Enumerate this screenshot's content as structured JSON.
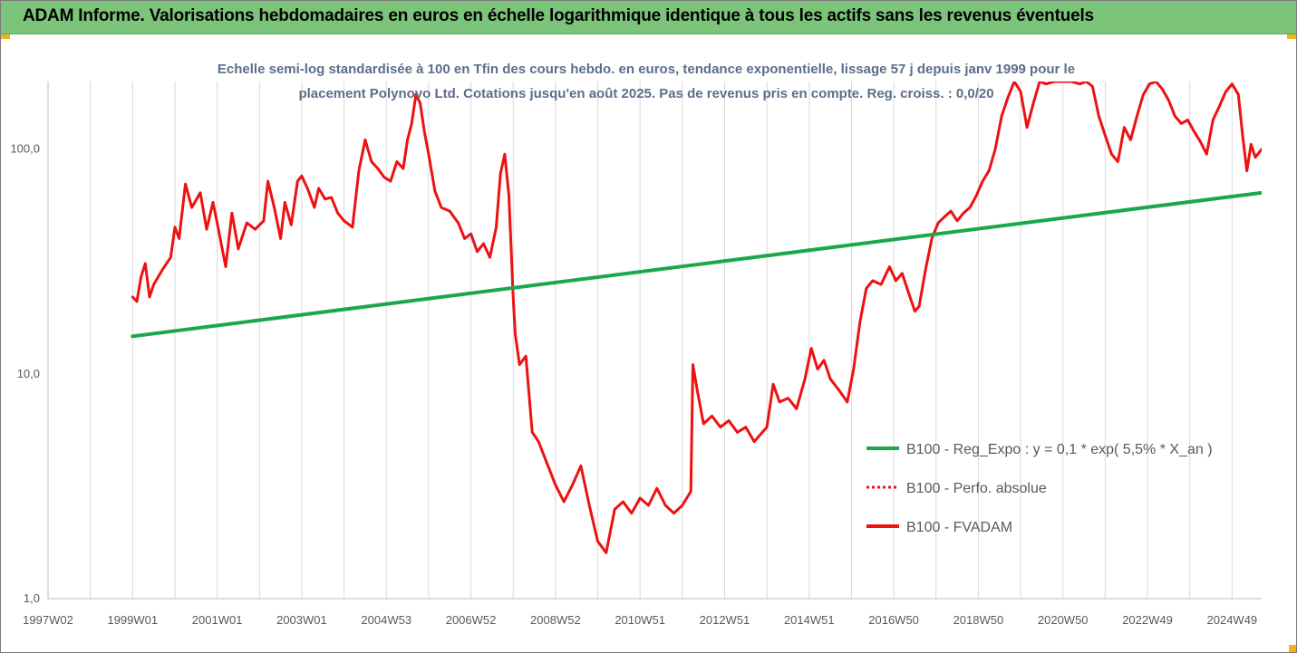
{
  "header": {
    "title": "ADAM Informe. Valorisations hebdomadaires en euros en échelle logarithmique identique à tous les actifs sans les revenus éventuels"
  },
  "colors": {
    "banner": "#7cc47a",
    "accent": "#f2b21a",
    "regression": "#1aa84a",
    "fvadam": "#ee1111",
    "perfo": "#ee1111",
    "subtitle": "#5b6e8a",
    "axis_text": "#595959"
  },
  "chart_data": {
    "type": "line",
    "subtitle_lines": [
      "Echelle semi-log standardisée à 100 en Tfin des cours hebdo. en euros, tendance exponentielle, lissage 57 j depuis janv 1999 pour le",
      "placement Polynovo Ltd. Cotations jusqu'en août 2025. Pas de revenus pris en compte. Reg. croiss. : 0,0/20"
    ],
    "y_scale": "log",
    "ylim": [
      1,
      200
    ],
    "y_ticks": [
      {
        "value": 1,
        "label": "1,0"
      },
      {
        "value": 10,
        "label": "10,0"
      },
      {
        "value": 100,
        "label": "100,0"
      }
    ],
    "x_unit": "year",
    "xlim": [
      1997.0,
      2025.7
    ],
    "x_ticks": [
      {
        "value": 1997.0,
        "label": "1997W02"
      },
      {
        "value": 1999.0,
        "label": "1999W01"
      },
      {
        "value": 2001.0,
        "label": "2001W01"
      },
      {
        "value": 2003.0,
        "label": "2003W01"
      },
      {
        "value": 2005.0,
        "label": "2004W53"
      },
      {
        "value": 2007.0,
        "label": "2006W52"
      },
      {
        "value": 2009.0,
        "label": "2008W52"
      },
      {
        "value": 2011.0,
        "label": "2010W51"
      },
      {
        "value": 2013.0,
        "label": "2012W51"
      },
      {
        "value": 2015.0,
        "label": "2014W51"
      },
      {
        "value": 2017.0,
        "label": "2016W50"
      },
      {
        "value": 2019.0,
        "label": "2018W50"
      },
      {
        "value": 2021.0,
        "label": "2020W50"
      },
      {
        "value": 2023.0,
        "label": "2022W49"
      },
      {
        "value": 2025.0,
        "label": "2024W49"
      }
    ],
    "grid": "vertical",
    "legend_position": "bottom-right",
    "series": [
      {
        "name": "B100 - Reg_Expo : y = 0,1 * exp( 5,5% *  X_an )",
        "style": "solid",
        "color": "#1aa84a",
        "points": [
          [
            1999.0,
            14.7
          ],
          [
            2025.7,
            64.0
          ]
        ]
      },
      {
        "name": "B100 - Perfo. absolue",
        "style": "dotted",
        "color": "#ee1111",
        "points": []
      },
      {
        "name": "B100 - FVADAM",
        "style": "solid",
        "color": "#ee1111",
        "points": [
          [
            1999.0,
            22
          ],
          [
            1999.1,
            21
          ],
          [
            1999.2,
            27
          ],
          [
            1999.3,
            31
          ],
          [
            1999.4,
            22
          ],
          [
            1999.5,
            25
          ],
          [
            1999.7,
            29
          ],
          [
            1999.9,
            33
          ],
          [
            2000.0,
            45
          ],
          [
            2000.1,
            40
          ],
          [
            2000.25,
            70
          ],
          [
            2000.4,
            55
          ],
          [
            2000.6,
            64
          ],
          [
            2000.75,
            44
          ],
          [
            2000.9,
            58
          ],
          [
            2001.0,
            47
          ],
          [
            2001.2,
            30
          ],
          [
            2001.35,
            52
          ],
          [
            2001.5,
            36
          ],
          [
            2001.7,
            47
          ],
          [
            2001.9,
            44
          ],
          [
            2002.1,
            48
          ],
          [
            2002.2,
            72
          ],
          [
            2002.35,
            55
          ],
          [
            2002.5,
            40
          ],
          [
            2002.6,
            58
          ],
          [
            2002.75,
            46
          ],
          [
            2002.9,
            72
          ],
          [
            2003.0,
            76
          ],
          [
            2003.15,
            66
          ],
          [
            2003.3,
            55
          ],
          [
            2003.4,
            67
          ],
          [
            2003.55,
            60
          ],
          [
            2003.7,
            61
          ],
          [
            2003.85,
            52
          ],
          [
            2004.0,
            48
          ],
          [
            2004.2,
            45
          ],
          [
            2004.35,
            80
          ],
          [
            2004.5,
            110
          ],
          [
            2004.65,
            88
          ],
          [
            2004.8,
            82
          ],
          [
            2004.95,
            75
          ],
          [
            2005.1,
            72
          ],
          [
            2005.25,
            88
          ],
          [
            2005.4,
            82
          ],
          [
            2005.5,
            110
          ],
          [
            2005.6,
            130
          ],
          [
            2005.7,
            175
          ],
          [
            2005.8,
            160
          ],
          [
            2005.9,
            120
          ],
          [
            2006.0,
            95
          ],
          [
            2006.15,
            65
          ],
          [
            2006.3,
            55
          ],
          [
            2006.5,
            53
          ],
          [
            2006.7,
            47
          ],
          [
            2006.85,
            40
          ],
          [
            2007.0,
            42
          ],
          [
            2007.15,
            35
          ],
          [
            2007.3,
            38
          ],
          [
            2007.45,
            33
          ],
          [
            2007.6,
            45
          ],
          [
            2007.7,
            78
          ],
          [
            2007.8,
            95
          ],
          [
            2007.9,
            62
          ],
          [
            2008.0,
            22
          ],
          [
            2008.05,
            15
          ],
          [
            2008.15,
            11
          ],
          [
            2008.3,
            12
          ],
          [
            2008.45,
            5.5
          ],
          [
            2008.6,
            5.0
          ],
          [
            2008.8,
            4.0
          ],
          [
            2009.0,
            3.2
          ],
          [
            2009.2,
            2.7
          ],
          [
            2009.4,
            3.2
          ],
          [
            2009.6,
            3.9
          ],
          [
            2009.8,
            2.6
          ],
          [
            2010.0,
            1.8
          ],
          [
            2010.2,
            1.6
          ],
          [
            2010.4,
            2.5
          ],
          [
            2010.6,
            2.7
          ],
          [
            2010.8,
            2.4
          ],
          [
            2011.0,
            2.8
          ],
          [
            2011.2,
            2.6
          ],
          [
            2011.4,
            3.1
          ],
          [
            2011.6,
            2.6
          ],
          [
            2011.8,
            2.4
          ],
          [
            2012.0,
            2.6
          ],
          [
            2012.2,
            3.0
          ],
          [
            2012.25,
            11
          ],
          [
            2012.35,
            8.5
          ],
          [
            2012.5,
            6.0
          ],
          [
            2012.7,
            6.5
          ],
          [
            2012.9,
            5.8
          ],
          [
            2013.1,
            6.2
          ],
          [
            2013.3,
            5.5
          ],
          [
            2013.5,
            5.8
          ],
          [
            2013.7,
            5.0
          ],
          [
            2014.0,
            5.8
          ],
          [
            2014.15,
            9.0
          ],
          [
            2014.3,
            7.5
          ],
          [
            2014.5,
            7.8
          ],
          [
            2014.7,
            7.0
          ],
          [
            2014.9,
            9.5
          ],
          [
            2015.05,
            13
          ],
          [
            2015.2,
            10.5
          ],
          [
            2015.35,
            11.5
          ],
          [
            2015.5,
            9.5
          ],
          [
            2015.7,
            8.5
          ],
          [
            2015.9,
            7.5
          ],
          [
            2016.05,
            10.5
          ],
          [
            2016.2,
            17
          ],
          [
            2016.35,
            24
          ],
          [
            2016.5,
            26
          ],
          [
            2016.7,
            25
          ],
          [
            2016.9,
            30
          ],
          [
            2017.05,
            26
          ],
          [
            2017.2,
            28
          ],
          [
            2017.35,
            23
          ],
          [
            2017.5,
            19
          ],
          [
            2017.6,
            20
          ],
          [
            2017.75,
            29
          ],
          [
            2017.9,
            40
          ],
          [
            2018.05,
            47
          ],
          [
            2018.2,
            50
          ],
          [
            2018.35,
            53
          ],
          [
            2018.5,
            48
          ],
          [
            2018.65,
            52
          ],
          [
            2018.8,
            55
          ],
          [
            2018.95,
            62
          ],
          [
            2019.1,
            72
          ],
          [
            2019.25,
            80
          ],
          [
            2019.4,
            100
          ],
          [
            2019.55,
            140
          ],
          [
            2019.7,
            170
          ],
          [
            2019.85,
            200
          ],
          [
            2020.0,
            180
          ],
          [
            2020.15,
            125
          ],
          [
            2020.3,
            160
          ],
          [
            2020.45,
            200
          ],
          [
            2020.6,
            195
          ],
          [
            2020.8,
            200
          ],
          [
            2021.0,
            200
          ],
          [
            2021.2,
            200
          ],
          [
            2021.4,
            195
          ],
          [
            2021.55,
            200
          ],
          [
            2021.7,
            190
          ],
          [
            2021.85,
            140
          ],
          [
            2022.0,
            115
          ],
          [
            2022.15,
            95
          ],
          [
            2022.3,
            88
          ],
          [
            2022.45,
            125
          ],
          [
            2022.6,
            110
          ],
          [
            2022.75,
            140
          ],
          [
            2022.9,
            175
          ],
          [
            2023.05,
            195
          ],
          [
            2023.2,
            200
          ],
          [
            2023.35,
            185
          ],
          [
            2023.5,
            165
          ],
          [
            2023.65,
            140
          ],
          [
            2023.8,
            130
          ],
          [
            2023.95,
            135
          ],
          [
            2024.1,
            120
          ],
          [
            2024.25,
            108
          ],
          [
            2024.4,
            95
          ],
          [
            2024.55,
            135
          ],
          [
            2024.7,
            155
          ],
          [
            2024.85,
            180
          ],
          [
            2025.0,
            195
          ],
          [
            2025.15,
            175
          ],
          [
            2025.25,
            115
          ],
          [
            2025.35,
            80
          ],
          [
            2025.45,
            105
          ],
          [
            2025.55,
            92
          ],
          [
            2025.7,
            100
          ]
        ]
      }
    ]
  }
}
